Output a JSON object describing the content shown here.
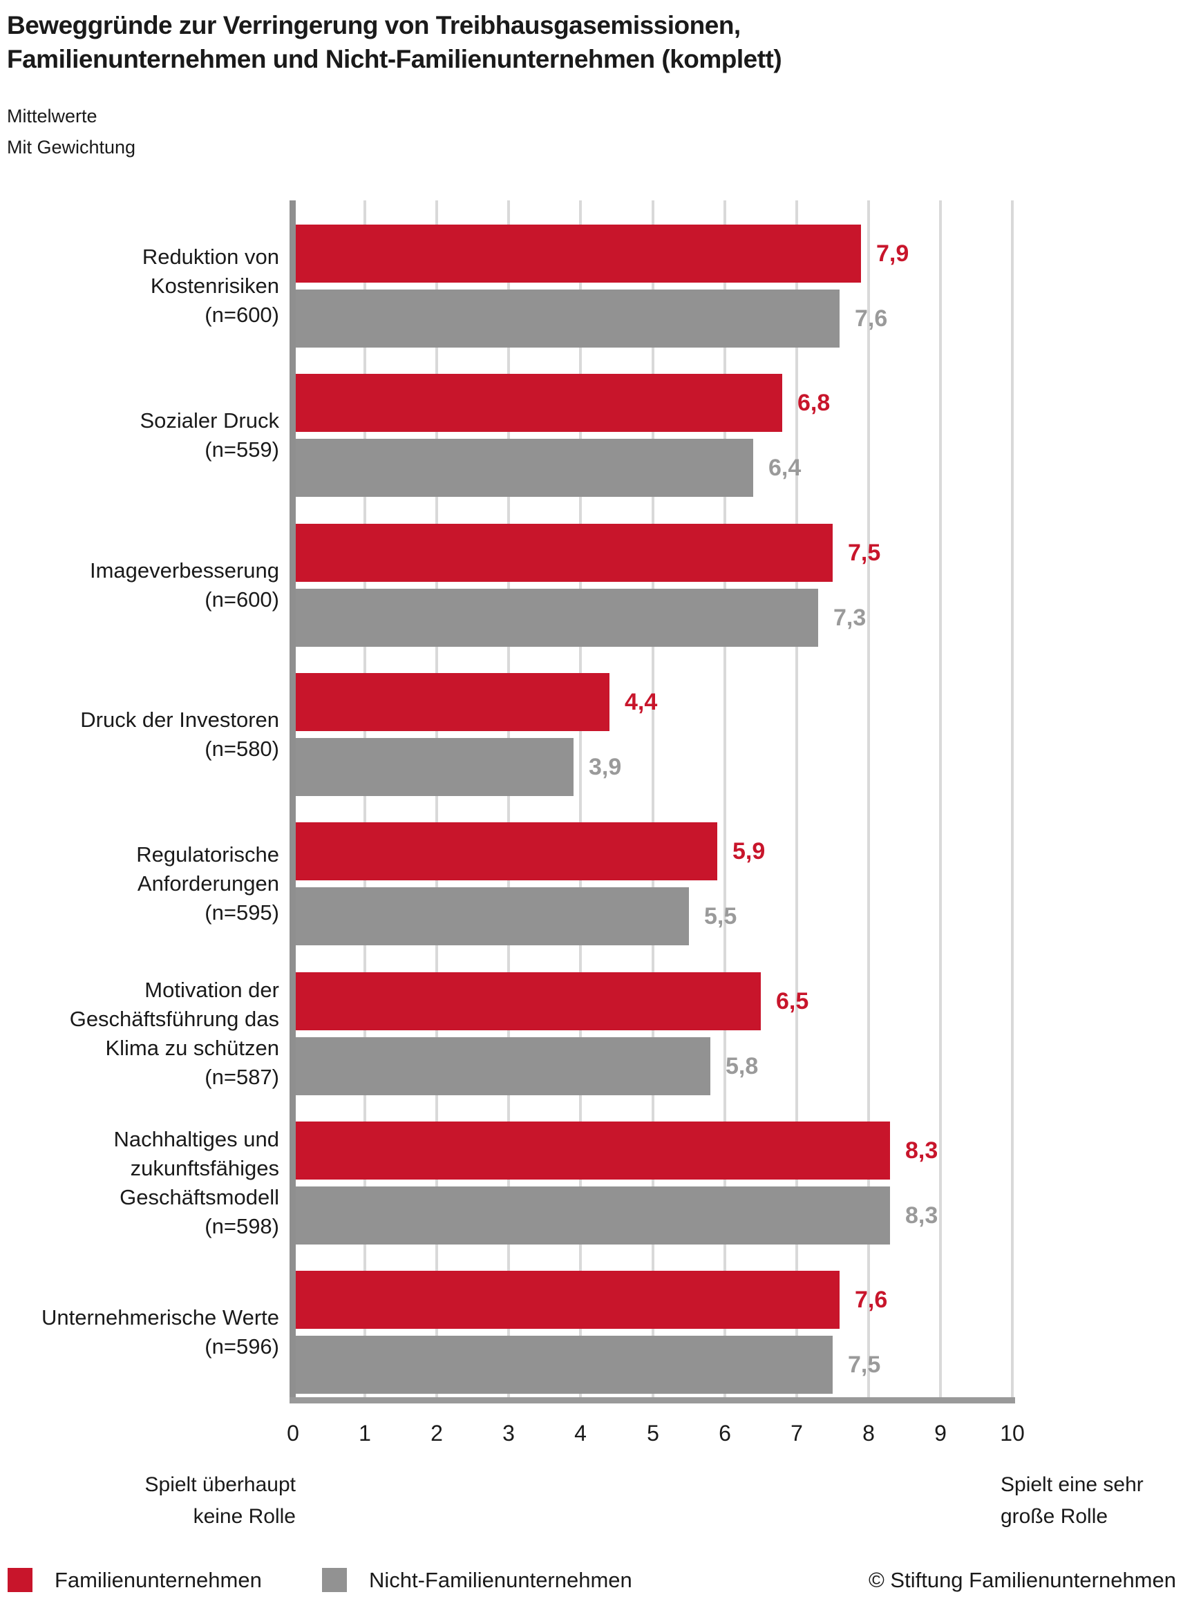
{
  "title": {
    "line1": "Beweggründe zur Verringerung von Treibhausgasemissionen,",
    "line2": "Familienunternehmen und Nicht-Familienunternehmen (komplett)"
  },
  "subtitle": {
    "line1": "Mittelwerte",
    "line2": "Mit Gewichtung"
  },
  "chart_data": {
    "type": "bar",
    "orientation": "horizontal",
    "title": "Beweggründe zur Verringerung von Treibhausgasemissionen, Familienunternehmen und Nicht-Familienunternehmen (komplett)",
    "categories": [
      {
        "lines": [
          "Reduktion von",
          "Kostenrisiken",
          "(n=600)"
        ]
      },
      {
        "lines": [
          "Sozialer Druck",
          "(n=559)"
        ]
      },
      {
        "lines": [
          "Imageverbesserung",
          "(n=600)"
        ]
      },
      {
        "lines": [
          "Druck der Investoren",
          "(n=580)"
        ]
      },
      {
        "lines": [
          "Regulatorische",
          "Anforderungen",
          "(n=595)"
        ]
      },
      {
        "lines": [
          "Motivation der",
          "Geschäftsführung das",
          "Klima zu schützen",
          "(n=587)"
        ]
      },
      {
        "lines": [
          "Nachhaltiges und",
          "zukunftsfähiges",
          "Geschäftsmodell",
          "(n=598)"
        ]
      },
      {
        "lines": [
          "Unternehmerische Werte",
          "(n=596)"
        ]
      }
    ],
    "series": [
      {
        "name": "Familienunternehmen",
        "color": "#c8152b",
        "values": [
          7.9,
          6.8,
          7.5,
          4.4,
          5.9,
          6.5,
          8.3,
          7.6
        ],
        "labels": [
          "7,9",
          "6,8",
          "7,5",
          "4,4",
          "5,9",
          "6,5",
          "8,3",
          "7,6"
        ]
      },
      {
        "name": "Nicht-Familienunternehmen",
        "color": "#929292",
        "values": [
          7.6,
          6.4,
          7.3,
          3.9,
          5.5,
          5.8,
          8.3,
          7.5
        ],
        "labels": [
          "7,6",
          "6,4",
          "7,3",
          "3,9",
          "5,5",
          "5,8",
          "8,3",
          "7,5"
        ]
      }
    ],
    "xlim": [
      0,
      10
    ],
    "tick_labels": [
      "0",
      "1",
      "2",
      "3",
      "4",
      "5",
      "6",
      "7",
      "8",
      "9",
      "10"
    ],
    "grid": true,
    "axis_label_left": [
      "Spielt überhaupt",
      "keine Rolle"
    ],
    "axis_label_right": [
      "Spielt eine sehr",
      "große Rolle"
    ],
    "legend_position": "bottom"
  },
  "legend": {
    "items": [
      {
        "label": "Familienunternehmen",
        "color": "#c8152b"
      },
      {
        "label": "Nicht-Familienunternehmen",
        "color": "#929292"
      }
    ],
    "copyright": "© Stiftung Familienunternehmen"
  },
  "colors": {
    "red": "#c8152b",
    "gray": "#929292",
    "gridline": "#d9d9d9",
    "axis": "#8f8f8f",
    "text": "#1a1a1a",
    "value_gray": "#9a9a9a"
  }
}
